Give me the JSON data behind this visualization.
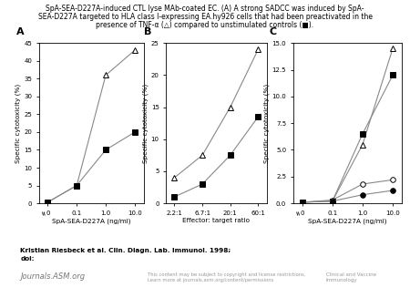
{
  "panel_A": {
    "label": "A",
    "x_positions": [
      0,
      1,
      2,
      3
    ],
    "x_ticklabels": [
      "0",
      "0.1",
      "1.0",
      "10.0"
    ],
    "xlabel": "SpA-SEA-D227A (ng/ml)",
    "ylabel": "Specific cytotoxicity (%)",
    "ylim": [
      0,
      45
    ],
    "yticks": [
      0,
      5,
      10,
      15,
      20,
      25,
      30,
      35,
      40,
      45
    ],
    "triangle_data": [
      0.3,
      5.0,
      36.0,
      43.0
    ],
    "square_data": [
      0.3,
      5.0,
      15.0,
      20.0
    ]
  },
  "panel_B": {
    "label": "B",
    "x_positions": [
      0,
      1,
      2,
      3
    ],
    "x_ticklabels": [
      "2.2:1",
      "6.7:1",
      "20:1",
      "60:1"
    ],
    "xlabel": "Effector: target ratio",
    "ylabel": "Specific cytotoxicity (%)",
    "ylim": [
      0,
      25
    ],
    "yticks": [
      0,
      5,
      10,
      15,
      20,
      25
    ],
    "triangle_data": [
      4.0,
      7.5,
      15.0,
      24.0
    ],
    "square_data": [
      1.0,
      3.0,
      7.5,
      13.5
    ]
  },
  "panel_C": {
    "label": "C",
    "x_positions": [
      0,
      1,
      2,
      3
    ],
    "x_ticklabels": [
      "0",
      "0.1",
      "1.0",
      "10.0"
    ],
    "xlabel": "SpA-SEA-D227A (ng/ml)",
    "ylabel": "Specific cytotoxicity (%)",
    "ylim": [
      0,
      15
    ],
    "yticks": [
      0,
      2.5,
      5.0,
      7.5,
      10.0,
      12.5,
      15.0
    ],
    "triangle_data": [
      0.1,
      0.2,
      5.5,
      14.5
    ],
    "square_data": [
      0.1,
      0.2,
      6.5,
      12.0
    ],
    "circle_open_data": [
      0.1,
      0.3,
      1.8,
      2.2
    ],
    "circle_filled_data": [
      0.1,
      0.2,
      0.8,
      1.2
    ]
  },
  "line_color": "#888888",
  "bg_color": "#ffffff",
  "figure_bg": "#ffffff",
  "title_lines": [
    "SpA-SEA-D227A-induced CTL lyse MAb-coated EC. (A) A strong SADCC was induced by SpA-",
    "SEA-D227A targeted to HLA class I-expressing EA.hy926 cells that had been preactivated in the",
    "presence of TNF-α (△) compared to unstimulated controls (■)."
  ],
  "footer_line1": "Kristian Riesbeck et al. Clin. Diagn. Lab. Immunol. 1998;",
  "footer_line2": "doi:",
  "footer_asm": "Journals.ASM.org",
  "footer_small": "This content may be subject to copyright and license restrictions.\nLearn more at journals.asm.org/content/permissions",
  "footer_journal": "Clinical and Vaccine\nImmunology"
}
